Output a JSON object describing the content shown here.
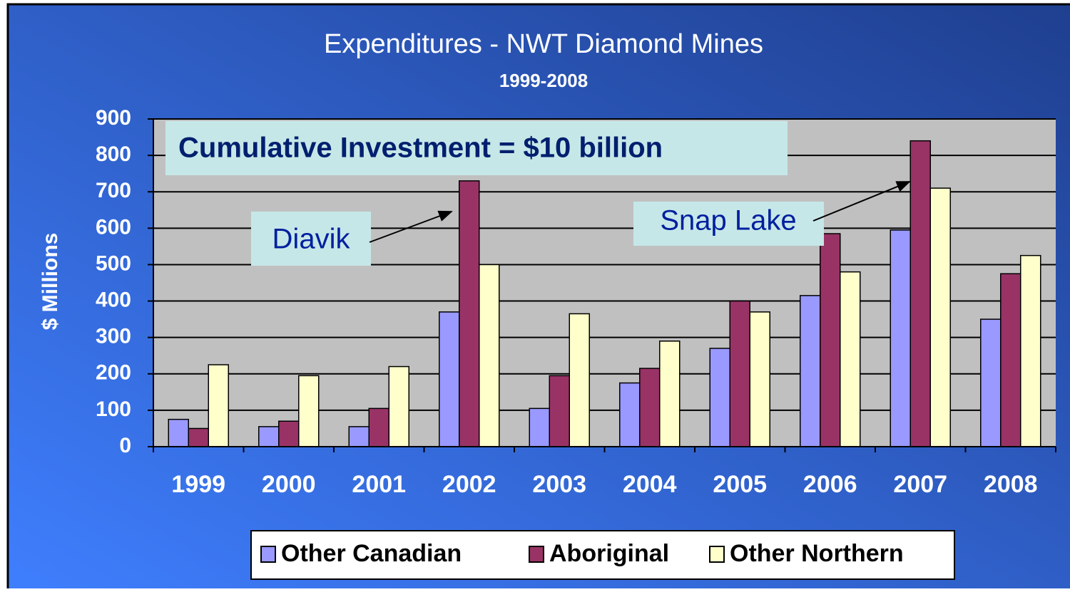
{
  "chart_data": {
    "type": "bar",
    "title": "Expenditures - NWT Diamond Mines",
    "subtitle": "1999-2008",
    "y_label": "$ Millions",
    "annotations": [
      "Cumulative Investment = $10 billion",
      "Diavik",
      "Snap Lake"
    ],
    "categories": [
      "1999",
      "2000",
      "2001",
      "2002",
      "2003",
      "2004",
      "2005",
      "2006",
      "2007",
      "2008"
    ],
    "series": [
      {
        "name": "Other Canadian",
        "color": "#9999ff",
        "values": [
          75,
          55,
          55,
          370,
          105,
          175,
          270,
          415,
          595,
          350
        ]
      },
      {
        "name": "Aboriginal",
        "color": "#993366",
        "values": [
          50,
          70,
          105,
          730,
          195,
          215,
          400,
          585,
          840,
          475
        ]
      },
      {
        "name": "Other Northern",
        "color": "#ffffcc",
        "values": [
          225,
          195,
          220,
          500,
          365,
          290,
          370,
          480,
          710,
          525
        ]
      }
    ],
    "ylim": [
      0,
      900
    ],
    "yticks": [
      0,
      100,
      200,
      300,
      400,
      500,
      600,
      700,
      800,
      900
    ],
    "grid": true,
    "legend": "bottom"
  }
}
